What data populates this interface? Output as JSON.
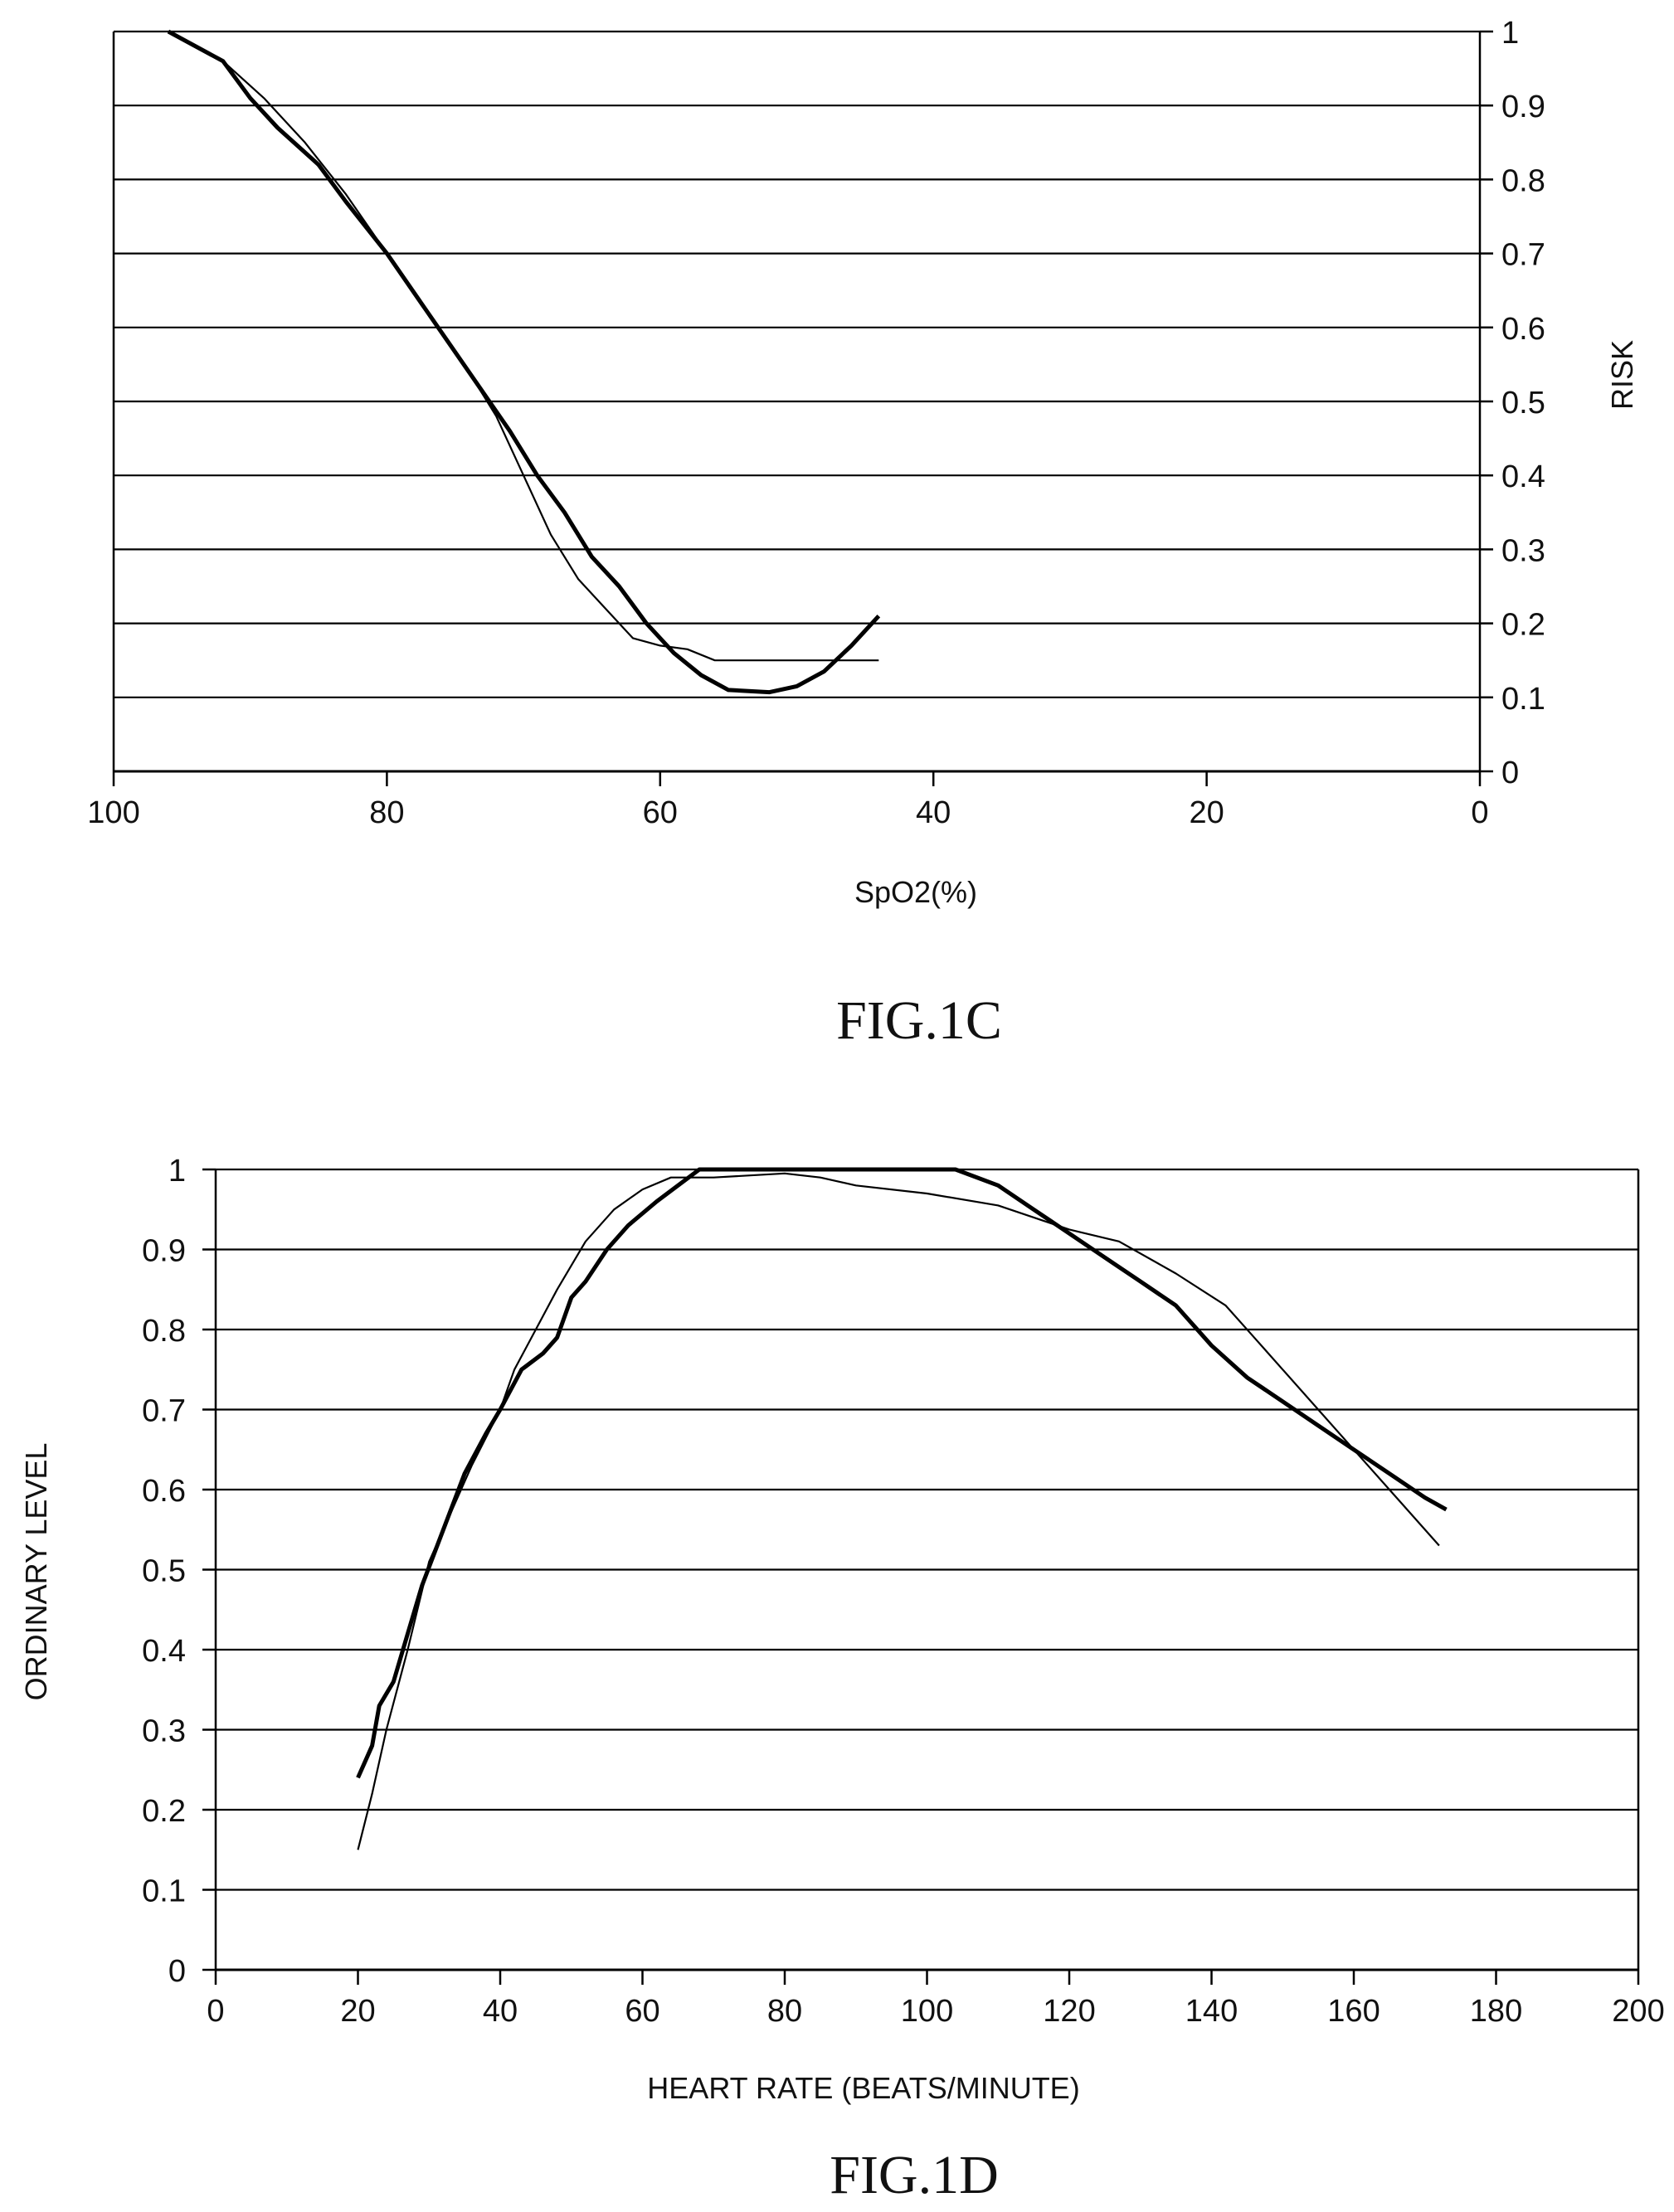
{
  "chart_data": [
    {
      "type": "line",
      "figure_label": "FIG.1C",
      "xlabel": "SpO2(%)",
      "xlabel_main": "SpO",
      "xlabel_sub": "2",
      "xlabel_tail": "(%)",
      "ylabel": "RISK",
      "xlim": [
        100,
        0
      ],
      "ylim": [
        0,
        1
      ],
      "x_ticks": [
        "100",
        "80",
        "60",
        "40",
        "20",
        "0"
      ],
      "y_ticks": [
        "0",
        "0.1",
        "0.2",
        "0.3",
        "0.4",
        "0.5",
        "0.6",
        "0.7",
        "0.8",
        "0.9",
        "1"
      ],
      "y_axis_side": "right",
      "grid": true,
      "series": [
        {
          "name": "thick",
          "x": [
            96,
            92,
            90,
            88,
            85,
            83,
            80,
            77,
            74,
            71,
            69,
            67,
            65,
            63,
            61,
            59,
            57,
            55,
            52,
            50,
            48,
            46,
            44
          ],
          "y": [
            1,
            0.96,
            0.91,
            0.87,
            0.82,
            0.77,
            0.7,
            0.62,
            0.54,
            0.46,
            0.4,
            0.35,
            0.29,
            0.25,
            0.2,
            0.16,
            0.13,
            0.11,
            0.107,
            0.115,
            0.135,
            0.17,
            0.21
          ]
        },
        {
          "name": "thin",
          "x": [
            96,
            92,
            89,
            86,
            83,
            80,
            77,
            74,
            72,
            70,
            68,
            66,
            64,
            62,
            60,
            58,
            56,
            50,
            44
          ],
          "y": [
            1,
            0.96,
            0.91,
            0.85,
            0.78,
            0.7,
            0.62,
            0.54,
            0.48,
            0.4,
            0.32,
            0.26,
            0.22,
            0.18,
            0.17,
            0.165,
            0.15,
            0.15,
            0.15
          ]
        }
      ]
    },
    {
      "type": "line",
      "figure_label": "FIG.1D",
      "xlabel": "HEART RATE (BEATS/MINUTE)",
      "ylabel": "ORDINARY LEVEL",
      "xlim": [
        0,
        200
      ],
      "ylim": [
        0,
        1
      ],
      "x_ticks": [
        "0",
        "20",
        "40",
        "60",
        "80",
        "100",
        "120",
        "140",
        "160",
        "180",
        "200"
      ],
      "y_ticks": [
        "0",
        "0.1",
        "0.2",
        "0.3",
        "0.4",
        "0.5",
        "0.6",
        "0.7",
        "0.8",
        "0.9",
        "1"
      ],
      "y_axis_side": "left",
      "grid": true,
      "series": [
        {
          "name": "thick",
          "x": [
            20,
            22,
            23,
            25,
            27,
            29,
            32,
            35,
            38,
            40,
            43,
            46,
            48,
            50,
            52,
            55,
            58,
            62,
            65,
            68,
            80,
            100,
            104,
            110,
            115,
            120,
            125,
            130,
            135,
            140,
            145,
            150,
            155,
            160,
            165,
            170,
            173
          ],
          "y": [
            0.24,
            0.28,
            0.33,
            0.36,
            0.42,
            0.48,
            0.55,
            0.62,
            0.67,
            0.7,
            0.75,
            0.77,
            0.79,
            0.84,
            0.86,
            0.9,
            0.93,
            0.96,
            0.98,
            1.0,
            1.0,
            1.0,
            1.0,
            0.98,
            0.95,
            0.92,
            0.89,
            0.86,
            0.83,
            0.78,
            0.74,
            0.71,
            0.68,
            0.65,
            0.62,
            0.59,
            0.575
          ]
        },
        {
          "name": "thin",
          "x": [
            20,
            22,
            24,
            27,
            30,
            33,
            36,
            40,
            42,
            45,
            48,
            52,
            56,
            60,
            64,
            70,
            80,
            85,
            90,
            100,
            110,
            120,
            127,
            135,
            142,
            146,
            150,
            155,
            160,
            165,
            172
          ],
          "y": [
            0.15,
            0.22,
            0.3,
            0.4,
            0.51,
            0.57,
            0.63,
            0.7,
            0.75,
            0.8,
            0.85,
            0.91,
            0.95,
            0.975,
            0.99,
            0.99,
            0.995,
            0.99,
            0.98,
            0.97,
            0.955,
            0.925,
            0.91,
            0.87,
            0.83,
            0.79,
            0.75,
            0.7,
            0.65,
            0.6,
            0.53
          ]
        }
      ]
    }
  ]
}
